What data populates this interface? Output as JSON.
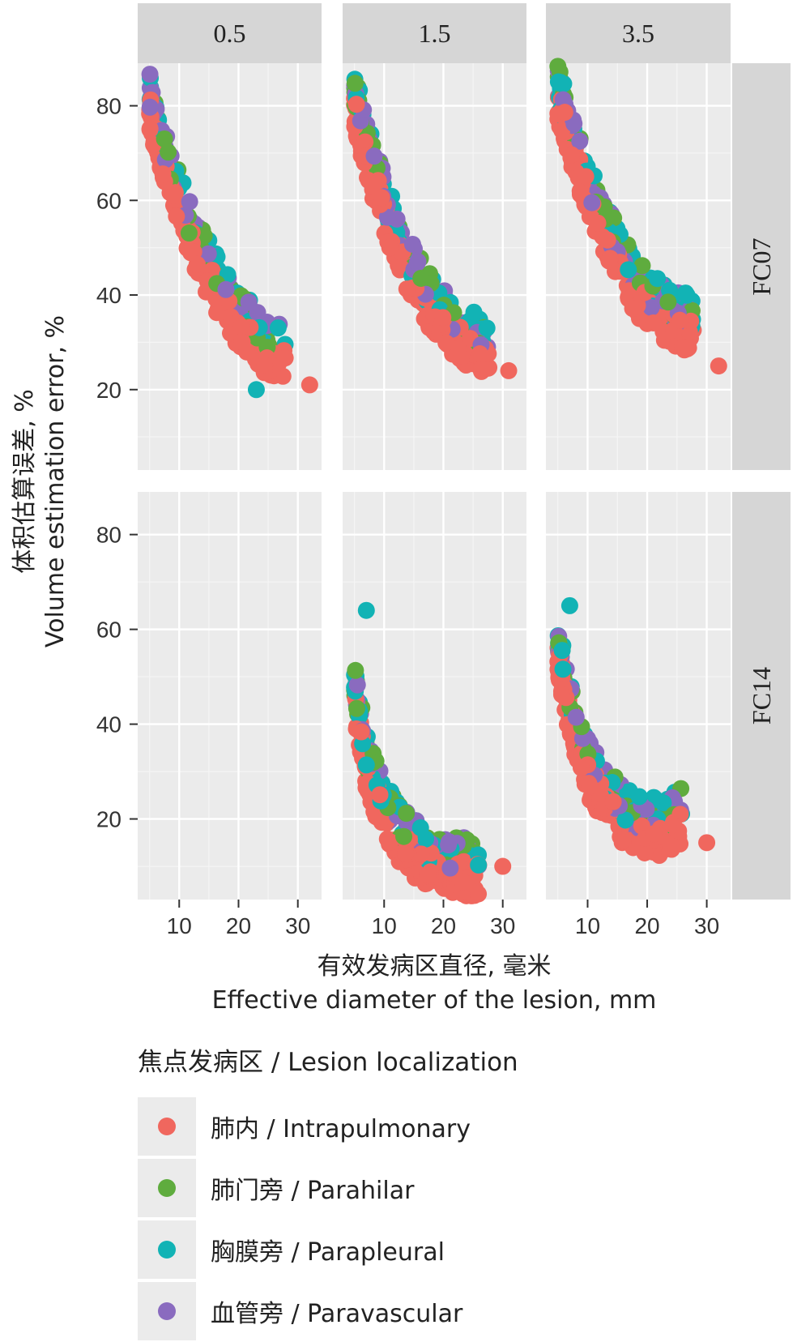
{
  "chart_data": {
    "type": "scatter",
    "facet_columns": [
      "0.5",
      "1.5",
      "3.5"
    ],
    "facet_rows": [
      "FC07",
      "FC14"
    ],
    "xlabel_zh": "有效发病区直径, 毫米",
    "xlabel_en": "Effective diameter of the lesion, mm",
    "ylabel_zh": "体积估算误差, %",
    "ylabel_en": "Volume estimation error, %",
    "x_ticks": [
      10,
      20,
      30
    ],
    "y_ticks": [
      20,
      40,
      60,
      80
    ],
    "xlim": [
      3,
      34
    ],
    "ylim": [
      3,
      89
    ],
    "legend_title": "焦点发病区 / Lesion localization",
    "groups": [
      {
        "key": "intrapulmonary",
        "label": "肺内 / Intrapulmonary",
        "color": "#f0675e"
      },
      {
        "key": "parahilar",
        "label": "肺门旁 / Parahilar",
        "color": "#5fac3e"
      },
      {
        "key": "parapleural",
        "label": "胸膜旁 / Parapleural",
        "color": "#12b3b5"
      },
      {
        "key": "paravascular",
        "label": "血管旁 / Paravascular",
        "color": "#8a6bbf"
      }
    ],
    "panels": [
      {
        "row": "FC07",
        "col": "0.5",
        "trend": {
          "x": [
            5,
            8,
            12,
            16,
            20,
            24,
            28
          ],
          "y": [
            81,
            67,
            53,
            43,
            35,
            30,
            27
          ]
        },
        "outliers": [
          [
            32,
            21
          ],
          [
            23,
            20
          ]
        ]
      },
      {
        "row": "FC07",
        "col": "1.5",
        "trend": {
          "x": [
            5,
            8,
            12,
            16,
            20,
            24,
            28
          ],
          "y": [
            81,
            67,
            52,
            42,
            35,
            31,
            28
          ]
        },
        "outliers": [
          [
            31,
            24
          ]
        ]
      },
      {
        "row": "FC07",
        "col": "3.5",
        "trend": {
          "x": [
            5,
            8,
            12,
            16,
            20,
            24,
            28
          ],
          "y": [
            83,
            70,
            56,
            46,
            39,
            35,
            34
          ]
        },
        "outliers": [
          [
            32,
            25
          ]
        ]
      },
      {
        "row": "FC14",
        "col": "0.5",
        "trend": {
          "x": [],
          "y": []
        },
        "outliers": []
      },
      {
        "row": "FC14",
        "col": "1.5",
        "trend": {
          "x": [
            5,
            7,
            10,
            13,
            16,
            19,
            22,
            26
          ],
          "y": [
            47,
            32,
            22,
            16,
            13,
            11,
            10,
            10
          ]
        },
        "outliers": [
          [
            30,
            10
          ],
          [
            7,
            64
          ]
        ]
      },
      {
        "row": "FC14",
        "col": "3.5",
        "trend": {
          "x": [
            5,
            7,
            10,
            13,
            16,
            19,
            22,
            26
          ],
          "y": [
            56,
            43,
            31,
            25,
            21,
            19,
            18,
            21
          ]
        },
        "outliers": [
          [
            30,
            15
          ],
          [
            7,
            65
          ]
        ]
      }
    ]
  }
}
